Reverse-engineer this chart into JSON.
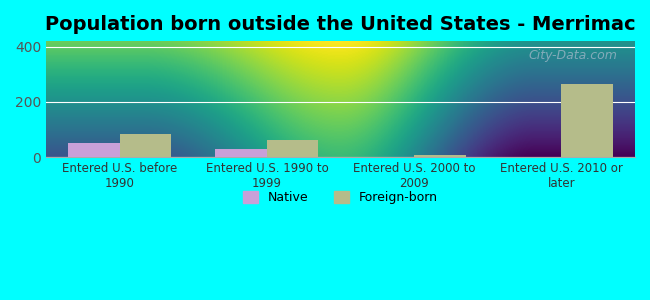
{
  "title": "Population born outside the United States - Merrimac",
  "categories": [
    "Entered U.S. before\n1990",
    "Entered U.S. 1990 to\n1999",
    "Entered U.S. 2000 to\n2009",
    "Entered U.S. 2010 or\nlater"
  ],
  "native_values": [
    50,
    28,
    0,
    0
  ],
  "foreign_values": [
    82,
    63,
    8,
    265
  ],
  "native_color": "#c8a0d8",
  "foreign_color": "#b5bc8a",
  "ylim": [
    0,
    420
  ],
  "yticks": [
    0,
    200,
    400
  ],
  "background_color_top": "#e8f5e0",
  "background_color_bottom": "#f8fff0",
  "outer_background": "#00ffff",
  "bar_width": 0.35,
  "title_fontsize": 14,
  "legend_native": "Native",
  "legend_foreign": "Foreign-born",
  "watermark": "City-Data.com"
}
